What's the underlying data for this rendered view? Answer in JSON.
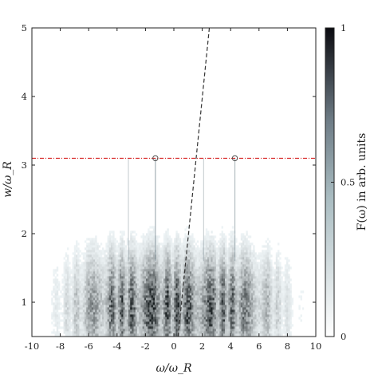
{
  "chart_data": {
    "type": "heatmap",
    "title": "",
    "xlabel": "ω/ω_R",
    "ylabel": "w/ω_R",
    "xlim": [
      -10,
      10
    ],
    "ylim": [
      0.5,
      5
    ],
    "xticks": [
      "-10",
      "-8",
      "-6",
      "-4",
      "-2",
      "0",
      "2",
      "4",
      "6",
      "8",
      "10"
    ],
    "yticks": [
      "1",
      "2",
      "3",
      "4",
      "5"
    ],
    "colorbar": {
      "label": "F(ω) in arb. units",
      "ticks": [
        "0",
        "0.5",
        "1"
      ],
      "range": [
        0,
        1
      ],
      "colormap": "white-to-black (grey/blue tint)"
    },
    "lines": [
      {
        "name": "",
        "style": "dashed black",
        "points": [
          [
            0.3,
            0.5
          ],
          [
            2.5,
            5.0
          ]
        ]
      },
      {
        "name": "",
        "style": "dash-dot red",
        "points": [
          [
            -10,
            3.1
          ],
          [
            10,
            3.1
          ]
        ]
      }
    ],
    "markers": [
      {
        "shape": "circle",
        "x": -1.3,
        "y": 3.1
      },
      {
        "shape": "circle",
        "x": 4.3,
        "y": 3.1
      }
    ],
    "intensity_description_regions": [
      {
        "x": [
          -7,
          7
        ],
        "y": [
          0.5,
          1.5
        ],
        "level": "high (dark band, strongest near w ≈ 0.7-1.2)"
      },
      {
        "x": [
          -5,
          5
        ],
        "y": [
          1.5,
          2.5
        ],
        "level": "medium streaks"
      }
    ],
    "grid": false
  },
  "colors": {
    "dashed_line": "#333333",
    "red_line": "#d62020",
    "colormap_low": "#ffffff",
    "colormap_mid": "#7f9aa2",
    "colormap_high": "#0b0b10"
  }
}
